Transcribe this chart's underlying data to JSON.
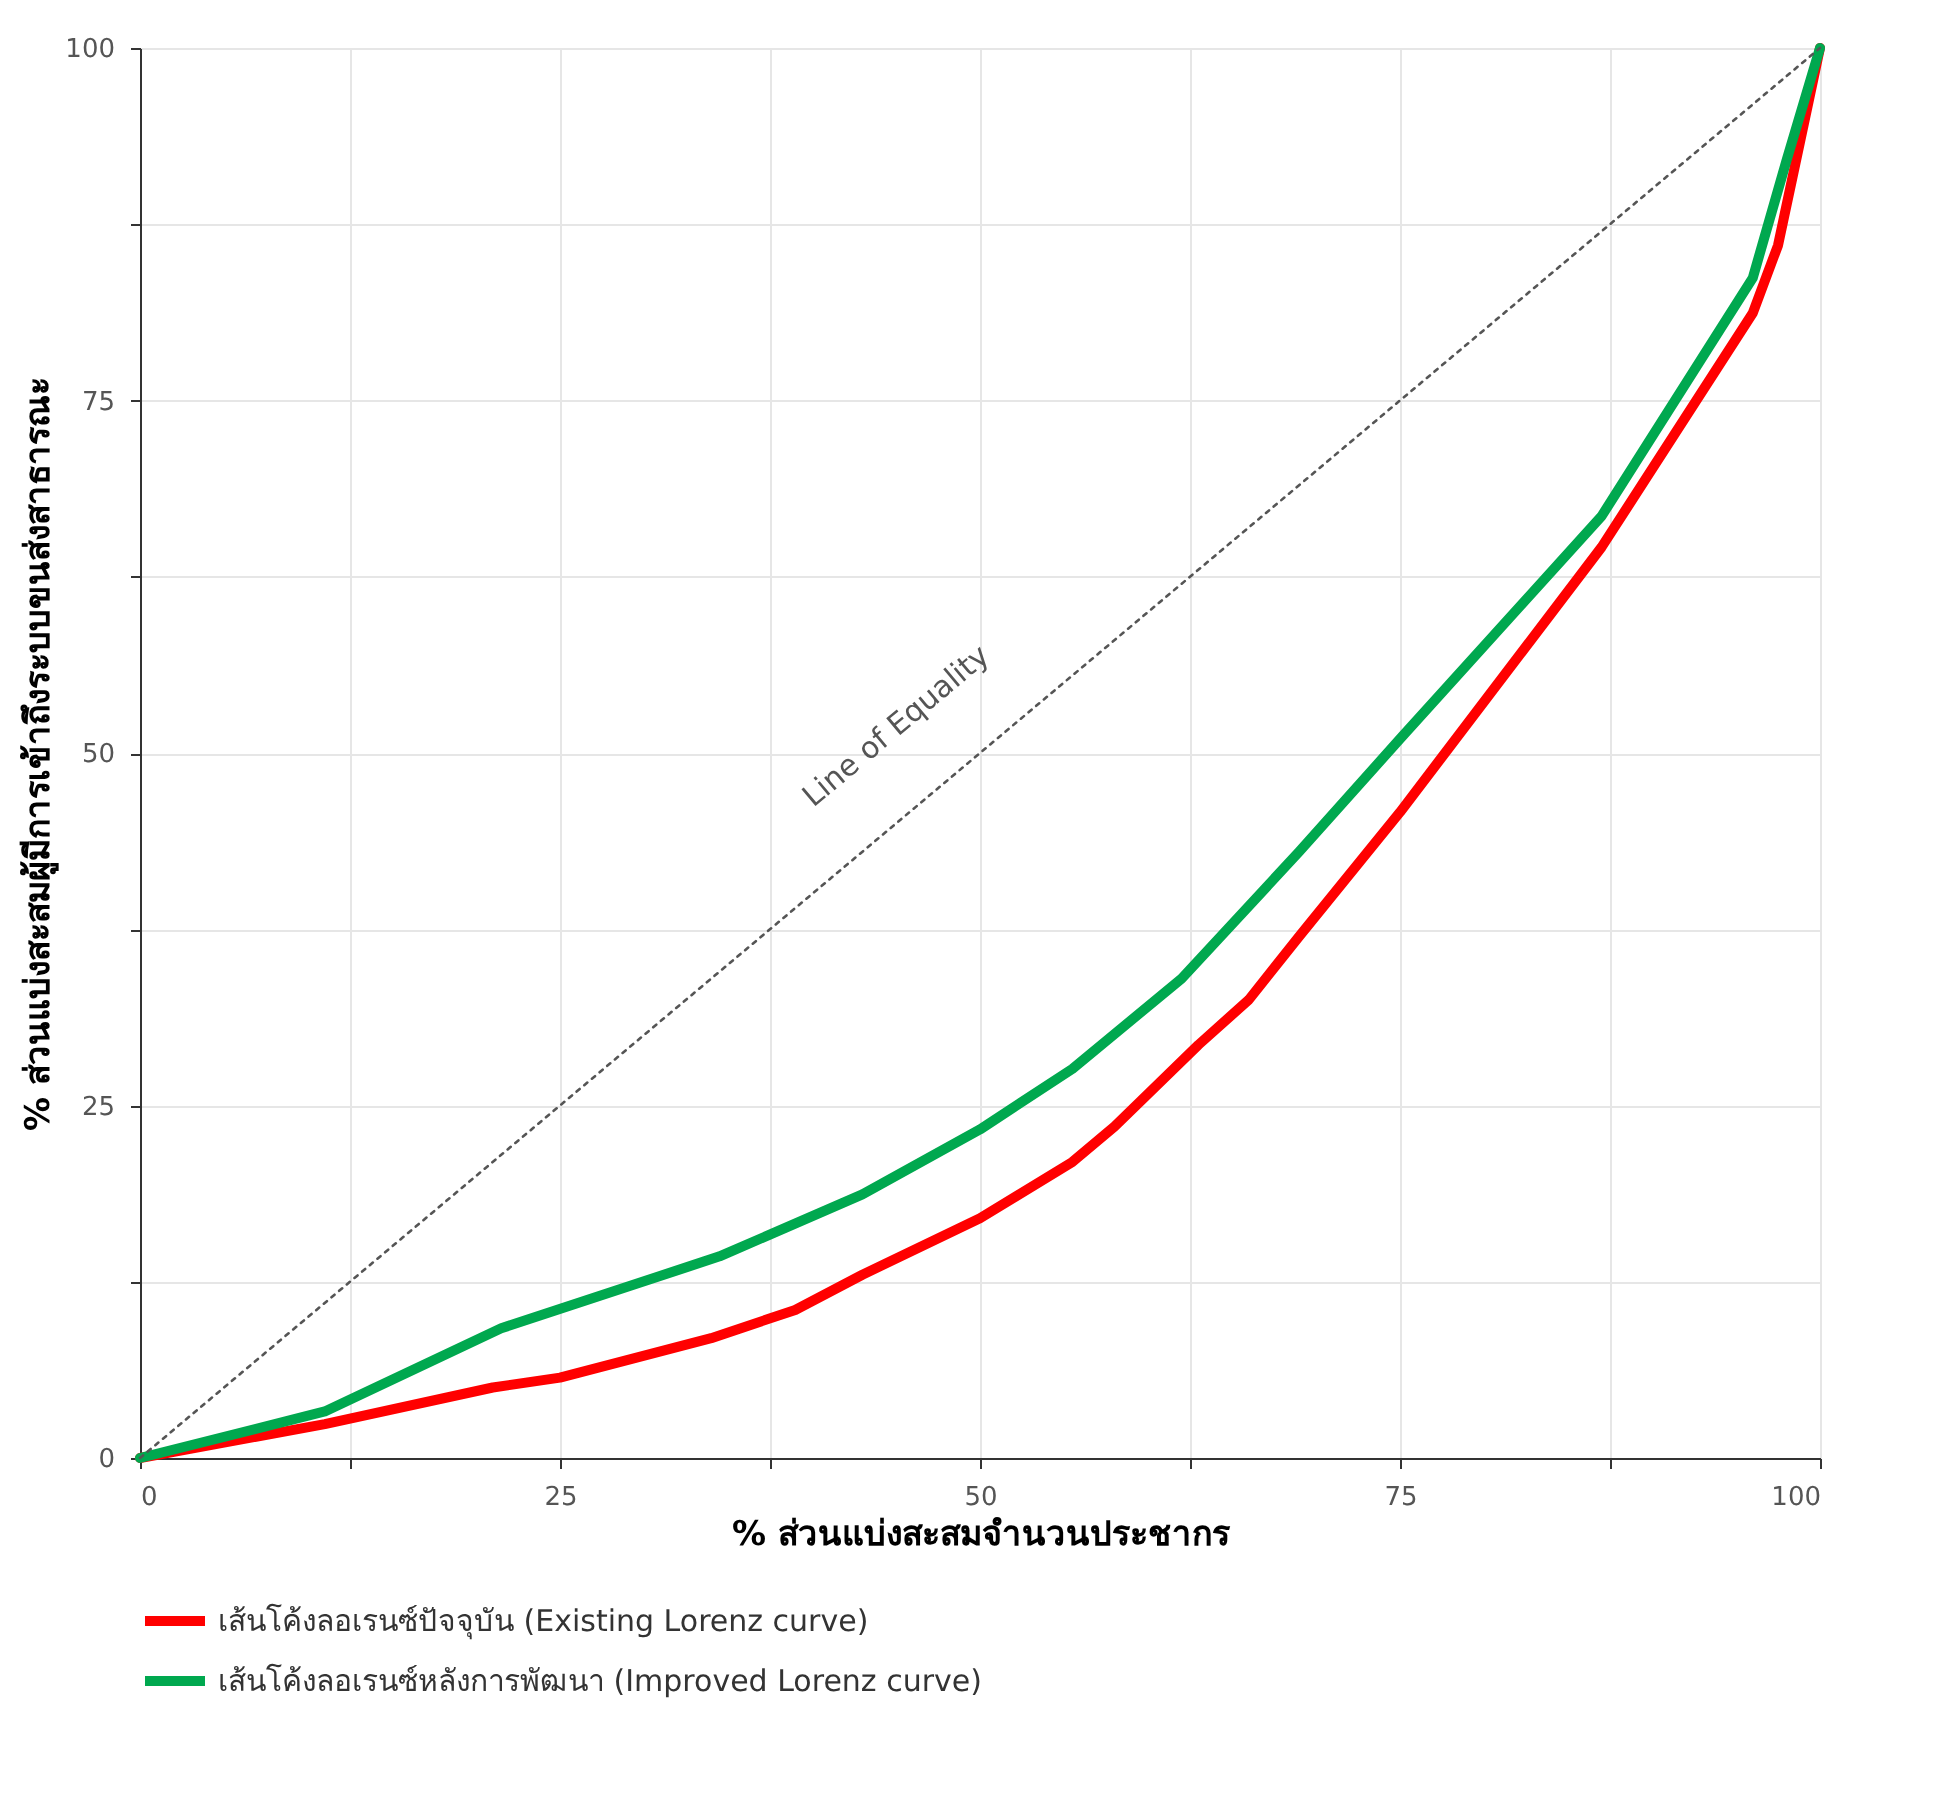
{
  "chart_data": {
    "type": "line",
    "xlabel": "% ส่วนแบ่งสะสมจำนวนประชากร",
    "ylabel": "% ส่วนแบ่งสะสมผู้มีการเข้าถึงระบบขนส่งสาธารณะ",
    "xlim": [
      0,
      100
    ],
    "ylim": [
      0,
      100
    ],
    "xticks": [
      0,
      {
        "value": 12.5,
        "label": null
      },
      25,
      {
        "value": 37.5,
        "label": null
      },
      50,
      {
        "value": 62.5,
        "label": null
      },
      75,
      {
        "value": 87.5,
        "label": null
      },
      100
    ],
    "yticks": [
      0,
      {
        "value": 12.5,
        "label": null
      },
      25,
      {
        "value": 37.5,
        "label": null
      },
      50,
      {
        "value": 62.5,
        "label": null
      },
      75,
      {
        "value": 87.5,
        "label": null
      },
      100
    ],
    "grid": true,
    "legend": "bottom",
    "marker": "none",
    "series": [
      {
        "name": "เส้นโค้งลอเรนซ์ปัจจุบัน (Existing Lorenz curve)",
        "color": "#ff0000",
        "x": [
          0,
          11,
          21,
          25,
          34,
          39,
          43,
          50,
          55.5,
          58,
          63,
          66,
          69,
          75,
          87,
          96,
          97.5,
          100
        ],
        "values": [
          0,
          2.4,
          5,
          5.7,
          8.5,
          10.5,
          13,
          17,
          21,
          23.5,
          29.3,
          32.5,
          37,
          45.8,
          64.6,
          81.2,
          86,
          100
        ]
      },
      {
        "name": "เส้นโค้งลอเรนซ์หลังการพัฒนา (Improved Lorenz curve)",
        "color": "#00a84f",
        "x": [
          0,
          11,
          21.5,
          34.5,
          43,
          50,
          55.5,
          62,
          69,
          75,
          87,
          96,
          98,
          100
        ],
        "values": [
          0,
          3.3,
          9.2,
          14.3,
          18.7,
          23.3,
          27.6,
          34,
          43,
          51,
          66.8,
          83.7,
          92,
          100
        ]
      },
      {
        "color": "#555555",
        "line_style": "dotted",
        "x": [
          0,
          100
        ],
        "values": [
          0,
          100
        ]
      }
    ],
    "annotations": [
      "Line of Equality"
    ]
  }
}
